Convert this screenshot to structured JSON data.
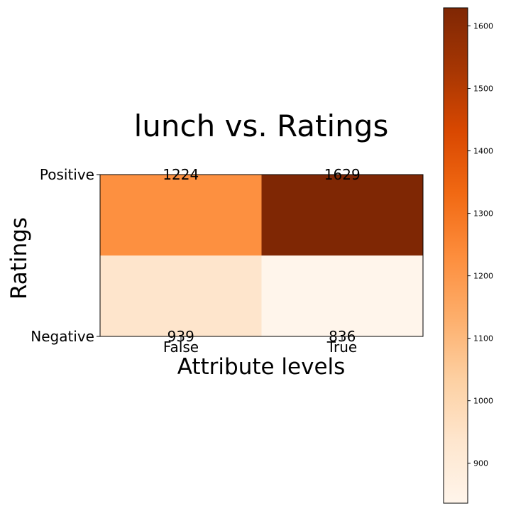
{
  "chart_data": {
    "type": "heatmap",
    "title": "lunch vs. Ratings",
    "xlabel": "Attribute levels",
    "ylabel": "Ratings",
    "x_categories": [
      "False",
      "True"
    ],
    "y_categories": [
      "Positive",
      "Negative"
    ],
    "values": [
      [
        1224,
        1629
      ],
      [
        939,
        836
      ]
    ],
    "colormap": "Oranges",
    "colorbar": {
      "range": [
        836,
        1629
      ],
      "ticks": [
        900,
        1000,
        1100,
        1200,
        1300,
        1400,
        1500,
        1600
      ]
    },
    "grid": false
  }
}
